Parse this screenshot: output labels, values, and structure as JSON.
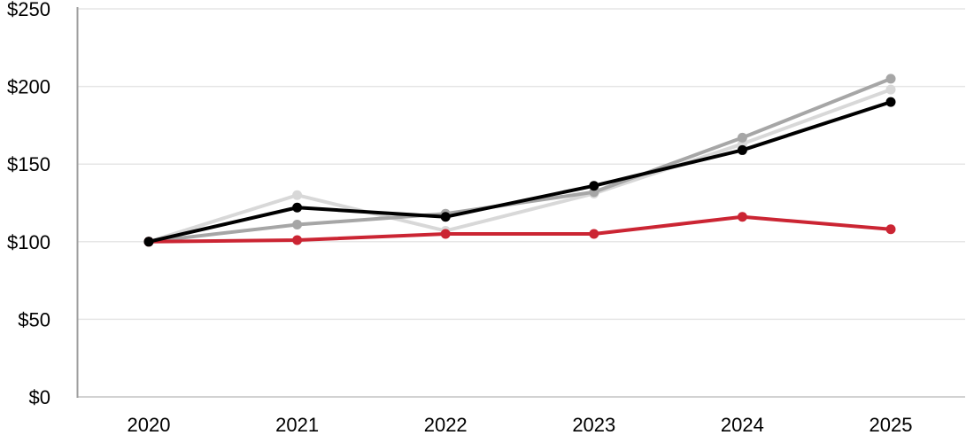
{
  "page": {
    "background": "#ffffff"
  },
  "chart_data": {
    "type": "line",
    "title": "",
    "xlabel": "",
    "ylabel": "",
    "categories": [
      "2020",
      "2021",
      "2022",
      "2023",
      "2024",
      "2025"
    ],
    "series": [
      {
        "name": "series-light-gray",
        "color": "#d8d8d8",
        "values": [
          100,
          130,
          107,
          131,
          163,
          198
        ]
      },
      {
        "name": "series-gray",
        "color": "#a6a6a6",
        "values": [
          100,
          111,
          118,
          132,
          167,
          205
        ]
      },
      {
        "name": "series-red",
        "color": "#cb2533",
        "values": [
          100,
          101,
          105,
          105,
          116,
          108
        ]
      },
      {
        "name": "series-black",
        "color": "#000000",
        "values": [
          100,
          122,
          116,
          136,
          159,
          190
        ]
      }
    ],
    "ylim": [
      0,
      250
    ],
    "yticks": [
      0,
      50,
      100,
      150,
      200,
      250
    ],
    "ytick_labels": [
      "$0",
      "$50",
      "$100",
      "$150",
      "$200",
      "$250"
    ],
    "value_prefix": "$",
    "grid": true,
    "legend": "none",
    "grid_color": "#e6e6e6",
    "baseline_color": "#d2d2d2",
    "axis_line_color": "#9e9e9e",
    "markers": true
  }
}
